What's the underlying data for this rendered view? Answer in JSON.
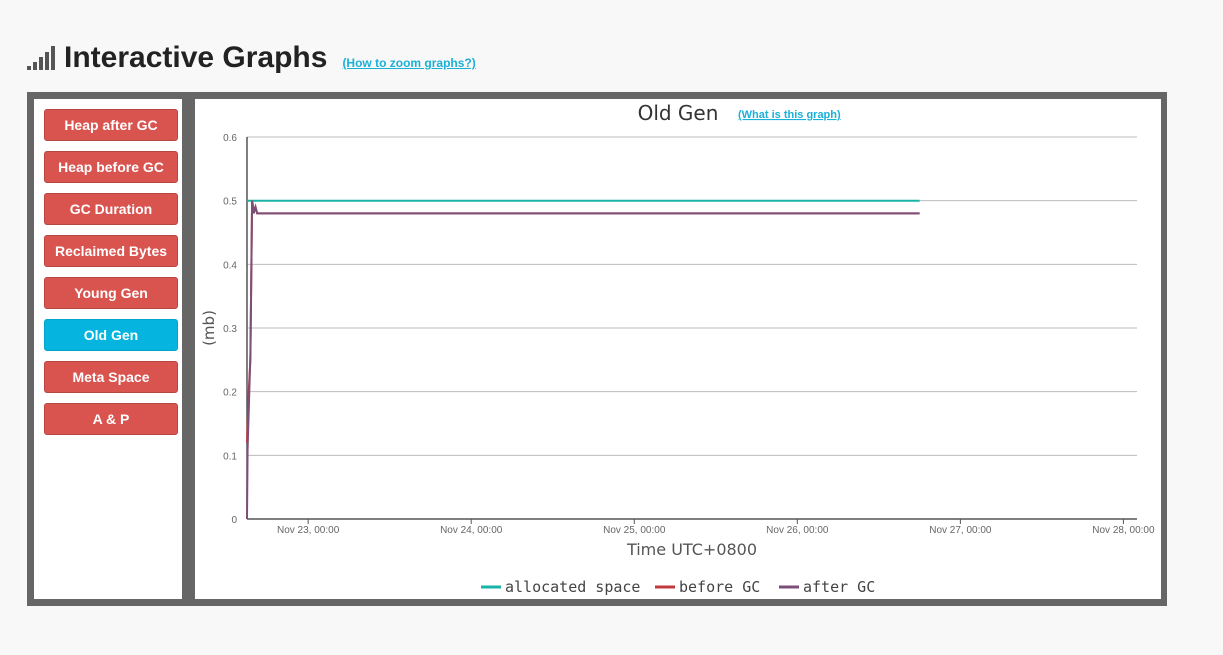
{
  "header": {
    "title": "Interactive Graphs",
    "help_link": "(How to zoom graphs?)"
  },
  "sidebar": {
    "items": [
      {
        "label": "Heap after GC",
        "active": false
      },
      {
        "label": "Heap before GC",
        "active": false
      },
      {
        "label": "GC Duration",
        "active": false
      },
      {
        "label": "Reclaimed Bytes",
        "active": false
      },
      {
        "label": "Young Gen",
        "active": false
      },
      {
        "label": "Old Gen",
        "active": true
      },
      {
        "label": "Meta Space",
        "active": false
      },
      {
        "label": "A & P",
        "active": false
      }
    ]
  },
  "graph": {
    "title": "Old Gen",
    "help_link": "(What is this graph)"
  },
  "colors": {
    "button": "#d9534f",
    "button_active": "#05b4df",
    "link": "#1ab0d8",
    "allocated": "#1ab3a8",
    "before": "#c0393b",
    "after": "#7d4e78"
  },
  "chart_data": {
    "type": "line",
    "title": "Old Gen",
    "xlabel": "Time UTC+0800",
    "ylabel": "(mb)",
    "ylim": [
      0,
      0.6
    ],
    "yticks": [
      "0",
      "0.1",
      "0.2",
      "0.3",
      "0.4",
      "0.5",
      "0.6"
    ],
    "xlim": [
      "Nov 22, 15:00",
      "Nov 28, 02:00"
    ],
    "xticks": [
      {
        "t": "Nov 23, 00:00",
        "label": "Nov 23, 00:00"
      },
      {
        "t": "Nov 24, 00:00",
        "label": "Nov 24, 00:00"
      },
      {
        "t": "Nov 25, 00:00",
        "label": "Nov 25, 00:00"
      },
      {
        "t": "Nov 26, 00:00",
        "label": "Nov 26, 00:00"
      },
      {
        "t": "Nov 27, 00:00",
        "label": "Nov 27, 00:00"
      },
      {
        "t": "Nov 28, 00:00",
        "label": "Nov 28, 00:00"
      }
    ],
    "grid": true,
    "legend": "bottom",
    "series": [
      {
        "name": "allocated space",
        "color": "#1ab3a8",
        "points": [
          {
            "x": "Nov 22, 15:00",
            "y": 0.5
          },
          {
            "x": "Nov 26, 18:00",
            "y": 0.5
          }
        ]
      },
      {
        "name": "before GC",
        "color": "#c0393b",
        "points": [
          {
            "x": "Nov 22, 15:00",
            "y": 0.12
          },
          {
            "x": "Nov 22, 15:15",
            "y": 0.2
          },
          {
            "x": "Nov 22, 15:30",
            "y": 0.25
          },
          {
            "x": "Nov 22, 15:45",
            "y": 0.5
          },
          {
            "x": "Nov 22, 16:00",
            "y": 0.485
          },
          {
            "x": "Nov 22, 16:15",
            "y": 0.49
          },
          {
            "x": "Nov 22, 16:30",
            "y": 0.48
          },
          {
            "x": "Nov 26, 18:00",
            "y": 0.48
          }
        ]
      },
      {
        "name": "after GC",
        "color": "#7d4e78",
        "points": [
          {
            "x": "Nov 22, 15:00",
            "y": 0.0
          },
          {
            "x": "Nov 22, 15:05",
            "y": 0.11
          },
          {
            "x": "Nov 22, 15:20",
            "y": 0.2
          },
          {
            "x": "Nov 22, 15:30",
            "y": 0.26
          },
          {
            "x": "Nov 22, 15:45",
            "y": 0.5
          },
          {
            "x": "Nov 22, 16:00",
            "y": 0.48
          },
          {
            "x": "Nov 22, 16:15",
            "y": 0.49
          },
          {
            "x": "Nov 22, 16:30",
            "y": 0.48
          },
          {
            "x": "Nov 26, 18:00",
            "y": 0.48
          }
        ]
      }
    ]
  }
}
